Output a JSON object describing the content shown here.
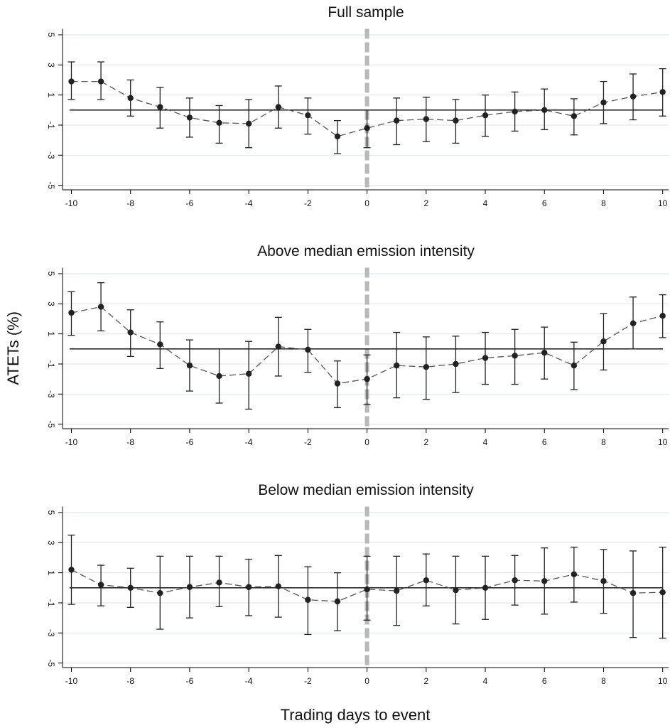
{
  "chart_data": [
    {
      "type": "line",
      "title": "Full sample",
      "x": [
        -10,
        -9,
        -8,
        -7,
        -6,
        -5,
        -4,
        -3,
        -2,
        -1,
        0,
        1,
        2,
        3,
        4,
        5,
        6,
        7,
        8,
        9,
        10
      ],
      "values": [
        1.9,
        1.9,
        0.8,
        0.2,
        -0.5,
        -0.85,
        -0.9,
        0.2,
        -0.35,
        -1.75,
        -1.2,
        -0.7,
        -0.6,
        -0.7,
        -0.35,
        -0.1,
        0.0,
        -0.4,
        0.5,
        0.9,
        1.2
      ],
      "lower": [
        0.7,
        0.7,
        -0.4,
        -1.2,
        -1.8,
        -2.2,
        -2.5,
        -1.2,
        -1.6,
        -2.9,
        -2.5,
        -2.3,
        -2.1,
        -2.2,
        -1.75,
        -1.4,
        -1.3,
        -1.65,
        -0.9,
        -0.65,
        -0.4
      ],
      "upper": [
        3.2,
        3.2,
        2.0,
        1.5,
        0.8,
        0.3,
        0.7,
        1.6,
        0.8,
        -0.7,
        0.0,
        0.8,
        0.85,
        0.7,
        1.0,
        1.2,
        1.4,
        0.75,
        1.9,
        2.4,
        2.75
      ],
      "color": "#222222",
      "hline": 0,
      "vline": 0,
      "xlim": [
        -10.3,
        10.2
      ],
      "ylim": [
        -5.3,
        5.4
      ],
      "xticks": [
        -10,
        -8,
        -6,
        -4,
        -2,
        0,
        2,
        4,
        6,
        8,
        10
      ],
      "yticks": [
        -5,
        -3,
        -1,
        1,
        3,
        5
      ],
      "grid": true
    },
    {
      "type": "line",
      "title": "Above median emission intensity",
      "ylabel": "ATETs (%)",
      "x": [
        -10,
        -9,
        -8,
        -7,
        -6,
        -5,
        -4,
        -3,
        -2,
        -1,
        0,
        1,
        2,
        3,
        4,
        5,
        6,
        7,
        8,
        9,
        10
      ],
      "values": [
        2.4,
        2.8,
        1.1,
        0.3,
        -1.1,
        -1.8,
        -1.65,
        0.15,
        -0.05,
        -2.3,
        -2.0,
        -1.1,
        -1.2,
        -1.0,
        -0.6,
        -0.45,
        -0.25,
        -1.1,
        0.5,
        1.7,
        2.2
      ],
      "lower": [
        0.9,
        1.2,
        -0.5,
        -1.3,
        -2.8,
        -3.6,
        -4.0,
        -1.8,
        -1.55,
        -3.9,
        -3.7,
        -3.25,
        -3.35,
        -2.9,
        -2.35,
        -2.35,
        -2.0,
        -2.7,
        -1.4,
        0.0,
        0.75
      ],
      "upper": [
        3.8,
        4.4,
        2.6,
        1.8,
        0.6,
        0.0,
        0.5,
        2.1,
        1.3,
        -0.8,
        -0.4,
        1.1,
        0.8,
        0.85,
        1.1,
        1.3,
        1.45,
        0.45,
        2.35,
        3.45,
        3.6
      ],
      "color": "#222222",
      "hline": 0,
      "vline": 0,
      "xlim": [
        -10.3,
        10.2
      ],
      "ylim": [
        -5.3,
        5.4
      ],
      "xticks": [
        -10,
        -8,
        -6,
        -4,
        -2,
        0,
        2,
        4,
        6,
        8,
        10
      ],
      "yticks": [
        -5,
        -3,
        -1,
        1,
        3,
        5
      ],
      "grid": true
    },
    {
      "type": "line",
      "title": "Below median emission intensity",
      "xlabel": "Trading days to event",
      "x": [
        -10,
        -9,
        -8,
        -7,
        -6,
        -5,
        -4,
        -3,
        -2,
        -1,
        0,
        1,
        2,
        3,
        4,
        5,
        6,
        7,
        8,
        9,
        10
      ],
      "values": [
        1.2,
        0.2,
        0.0,
        -0.35,
        0.05,
        0.35,
        0.05,
        0.1,
        -0.8,
        -0.9,
        -0.1,
        -0.2,
        0.5,
        -0.15,
        0.0,
        0.5,
        0.45,
        0.9,
        0.45,
        -0.35,
        -0.3
      ],
      "lower": [
        -1.1,
        -1.2,
        -1.3,
        -2.75,
        -2.0,
        -1.25,
        -1.85,
        -1.95,
        -3.1,
        -2.85,
        -2.15,
        -2.5,
        -1.2,
        -2.4,
        -2.1,
        -1.15,
        -1.75,
        -0.95,
        -1.7,
        -3.3,
        -3.35
      ],
      "upper": [
        3.5,
        1.5,
        1.3,
        2.1,
        2.1,
        2.1,
        1.9,
        2.15,
        1.4,
        1.0,
        2.1,
        2.1,
        2.25,
        2.1,
        2.1,
        2.15,
        2.65,
        2.7,
        2.55,
        2.45,
        2.7
      ],
      "color": "#222222",
      "hline": 0,
      "vline": 0,
      "xlim": [
        -10.3,
        10.2
      ],
      "ylim": [
        -5.3,
        5.4
      ],
      "xticks": [
        -10,
        -8,
        -6,
        -4,
        -2,
        0,
        2,
        4,
        6,
        8,
        10
      ],
      "yticks": [
        -5,
        -3,
        -1,
        1,
        3,
        5
      ],
      "grid": true
    }
  ]
}
